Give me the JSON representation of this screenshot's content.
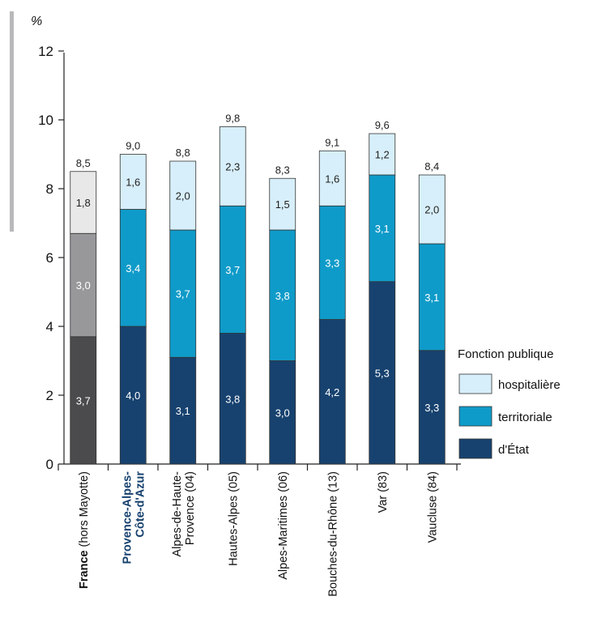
{
  "chart_data": {
    "type": "bar",
    "stacked": true,
    "ylabel": "%",
    "ylim": [
      0,
      12
    ],
    "yticks": [
      0,
      2,
      4,
      6,
      8,
      10,
      12
    ],
    "grid": false,
    "categories": [
      {
        "label": "France",
        "suffix": " (hors Mayotte)",
        "highlight": "france"
      },
      {
        "label": "Provence-Alpes-",
        "label2": "Côte-d'Azur",
        "highlight": "region"
      },
      {
        "label": "Alpes-de-Haute-",
        "label2": "Provence (04)"
      },
      {
        "label": "Hautes-Alpes (05)"
      },
      {
        "label": "Alpes-Maritimes (06)"
      },
      {
        "label": "Bouches-du-Rhône (13)"
      },
      {
        "label": "Var (83)"
      },
      {
        "label": "Vaucluse (84)"
      }
    ],
    "series": [
      {
        "name": "d'État",
        "key": "etat",
        "color": "#17426f",
        "france_color": "#4b4b4d",
        "values": [
          3.7,
          4.0,
          3.1,
          3.8,
          3.0,
          4.2,
          5.3,
          3.3
        ],
        "labels": [
          "3,7",
          "4,0",
          "3,1",
          "3,8",
          "3,0",
          "4,2",
          "5,3",
          "3,3"
        ]
      },
      {
        "name": "territoriale",
        "key": "territoriale",
        "color": "#0f9bc9",
        "france_color": "#98989b",
        "values": [
          3.0,
          3.4,
          3.7,
          3.7,
          3.8,
          3.3,
          3.1,
          3.1
        ],
        "labels": [
          "3,0",
          "3,4",
          "3,7",
          "3,7",
          "3,8",
          "3,3",
          "3,1",
          "3,1"
        ]
      },
      {
        "name": "hospitalière",
        "key": "hospitaliere",
        "color": "#d7effa",
        "france_color": "#e8e8e9",
        "values": [
          1.8,
          1.6,
          2.0,
          2.3,
          1.5,
          1.6,
          1.2,
          2.0
        ],
        "labels": [
          "1,8",
          "1,6",
          "2,0",
          "2,3",
          "1,5",
          "1,6",
          "1,2",
          "2,0"
        ]
      }
    ],
    "totals": [
      8.5,
      9.0,
      8.8,
      9.8,
      8.3,
      9.1,
      9.6,
      8.4
    ],
    "total_labels": [
      "8,5",
      "9,0",
      "8,8",
      "9,8",
      "8,3",
      "9,1",
      "9,6",
      "8,4"
    ],
    "legend": {
      "title": "Fonction publique",
      "placement": "right",
      "order": [
        "hospitalière",
        "territoriale",
        "d'État"
      ]
    }
  }
}
